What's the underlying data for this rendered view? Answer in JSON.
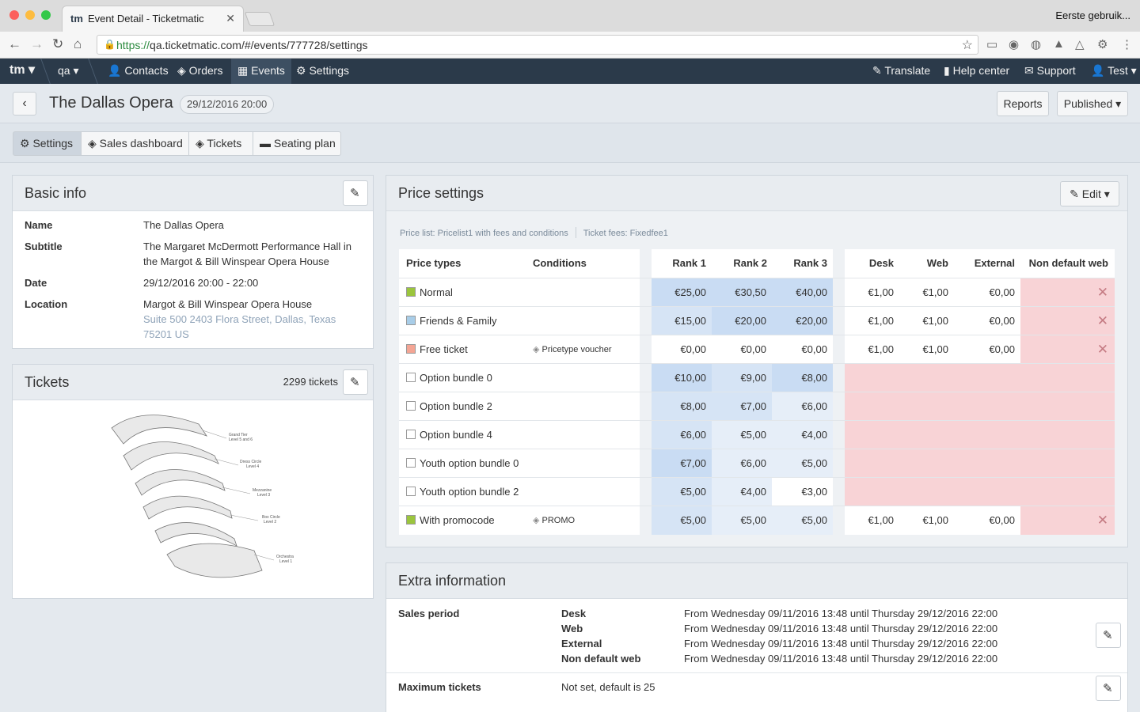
{
  "browser": {
    "tab_title": "Event Detail - Ticketmatic",
    "tab_logo": "tm",
    "profile_label": "Eerste gebruik...",
    "url_scheme": "https://",
    "url_rest": "qa.ticketmatic.com/#/events/777728/settings"
  },
  "appnav": {
    "brand": "tm",
    "env": "qa",
    "items": [
      {
        "label": "Contacts",
        "icon": "user-icon"
      },
      {
        "label": "Orders",
        "icon": "ticket-icon"
      },
      {
        "label": "Events",
        "icon": "calendar-icon"
      },
      {
        "label": "Settings",
        "icon": "gear-icon"
      }
    ],
    "right": [
      {
        "label": "Translate",
        "icon": "pencil-icon"
      },
      {
        "label": "Help center",
        "icon": "book-icon"
      },
      {
        "label": "Support",
        "icon": "envelope-icon"
      },
      {
        "label": "Test",
        "icon": "user-icon"
      }
    ]
  },
  "header": {
    "title": "The Dallas Opera",
    "date": "29/12/2016 20:00",
    "reports_label": "Reports",
    "status_label": "Published"
  },
  "tabs": [
    {
      "label": "Settings",
      "icon": "gear-icon"
    },
    {
      "label": "Sales dashboard",
      "icon": "ticket-icon"
    },
    {
      "label": "Tickets",
      "icon": "ticket-icon"
    },
    {
      "label": "Seating plan",
      "icon": "sofa-icon"
    }
  ],
  "basic_info": {
    "title": "Basic info",
    "rows": [
      {
        "label": "Name",
        "lines": [
          "The Dallas Opera"
        ],
        "muted": []
      },
      {
        "label": "Subtitle",
        "lines": [
          "The Margaret McDermott Performance Hall in",
          "the Margot & Bill Winspear Opera House"
        ],
        "muted": []
      },
      {
        "label": "Date",
        "lines": [
          "29/12/2016 20:00 - 22:00"
        ],
        "muted": []
      },
      {
        "label": "Location",
        "lines": [
          "Margot & Bill Winspear Opera House"
        ],
        "muted": [
          "Suite 500 2403 Flora Street, Dallas, Texas",
          "75201 US"
        ]
      }
    ]
  },
  "tickets_panel": {
    "title": "Tickets",
    "count": "2299 tickets",
    "levels": [
      "Grand Tier",
      "Level 5 and 6",
      "Dress Circle",
      "Level 4",
      "Mezzanine",
      "Level 3",
      "Box Circle",
      "Level 2",
      "Orchestra",
      "Level 1"
    ]
  },
  "price_settings": {
    "title": "Price settings",
    "edit_label": "Edit",
    "price_list": "Price list: Pricelist1 with fees and conditions",
    "ticket_fees": "Ticket fees: Fixedfee1",
    "headers": {
      "price_types": "Price types",
      "conditions": "Conditions",
      "rank1": "Rank 1",
      "rank2": "Rank 2",
      "rank3": "Rank 3",
      "desk": "Desk",
      "web": "Web",
      "external": "External",
      "nondefault": "Non default web"
    },
    "rows": [
      {
        "name": "Normal",
        "color": "#9bc53d",
        "condition": "",
        "r1": "€25,00",
        "r2": "€30,50",
        "r3": "€40,00",
        "desk": "€1,00",
        "web": "€1,00",
        "ext": "€0,00",
        "shade": [
          1,
          1,
          1
        ]
      },
      {
        "name": "Friends & Family",
        "color": "#a8cde8",
        "condition": "",
        "r1": "€15,00",
        "r2": "€20,00",
        "r3": "€20,00",
        "desk": "€1,00",
        "web": "€1,00",
        "ext": "€0,00",
        "shade": [
          2,
          1,
          1
        ]
      },
      {
        "name": "Free ticket",
        "color": "#f4a594",
        "condition": "Pricetype voucher",
        "r1": "€0,00",
        "r2": "€0,00",
        "r3": "€0,00",
        "desk": "€1,00",
        "web": "€1,00",
        "ext": "€0,00",
        "shade": [
          0,
          0,
          0
        ]
      },
      {
        "name": "Option bundle 0",
        "color": "#ffffff",
        "condition": "",
        "r1": "€10,00",
        "r2": "€9,00",
        "r3": "€8,00",
        "desk": "",
        "web": "",
        "ext": "",
        "shade": [
          1,
          2,
          1
        ]
      },
      {
        "name": "Option bundle 2",
        "color": "#ffffff",
        "condition": "",
        "r1": "€8,00",
        "r2": "€7,00",
        "r3": "€6,00",
        "desk": "",
        "web": "",
        "ext": "",
        "shade": [
          2,
          2,
          3
        ]
      },
      {
        "name": "Option bundle 4",
        "color": "#ffffff",
        "condition": "",
        "r1": "€6,00",
        "r2": "€5,00",
        "r3": "€4,00",
        "desk": "",
        "web": "",
        "ext": "",
        "shade": [
          2,
          3,
          3
        ]
      },
      {
        "name": "Youth option bundle 0",
        "color": "#ffffff",
        "condition": "",
        "r1": "€7,00",
        "r2": "€6,00",
        "r3": "€5,00",
        "desk": "",
        "web": "",
        "ext": "",
        "shade": [
          1,
          3,
          3
        ]
      },
      {
        "name": "Youth option bundle 2",
        "color": "#ffffff",
        "condition": "",
        "r1": "€5,00",
        "r2": "€4,00",
        "r3": "€3,00",
        "desk": "",
        "web": "",
        "ext": "",
        "shade": [
          2,
          3,
          0
        ]
      },
      {
        "name": "With promocode",
        "color": "#9bc53d",
        "condition": "PROMO",
        "r1": "€5,00",
        "r2": "€5,00",
        "r3": "€5,00",
        "desk": "€1,00",
        "web": "€1,00",
        "ext": "€0,00",
        "shade": [
          2,
          3,
          3
        ]
      }
    ]
  },
  "extra_info": {
    "title": "Extra information",
    "sales_period_label": "Sales period",
    "sales_periods": [
      {
        "channel": "Desk",
        "value": "From Wednesday 09/11/2016 13:48 until Thursday 29/12/2016 22:00"
      },
      {
        "channel": "Web",
        "value": "From Wednesday 09/11/2016 13:48 until Thursday 29/12/2016 22:00"
      },
      {
        "channel": "External",
        "value": "From Wednesday 09/11/2016 13:48 until Thursday 29/12/2016 22:00"
      },
      {
        "channel": "Non default web",
        "value": "From Wednesday 09/11/2016 13:48 until Thursday 29/12/2016 22:00"
      }
    ],
    "max_tickets_label": "Maximum tickets",
    "max_tickets_value": "Not set, default is 25"
  }
}
